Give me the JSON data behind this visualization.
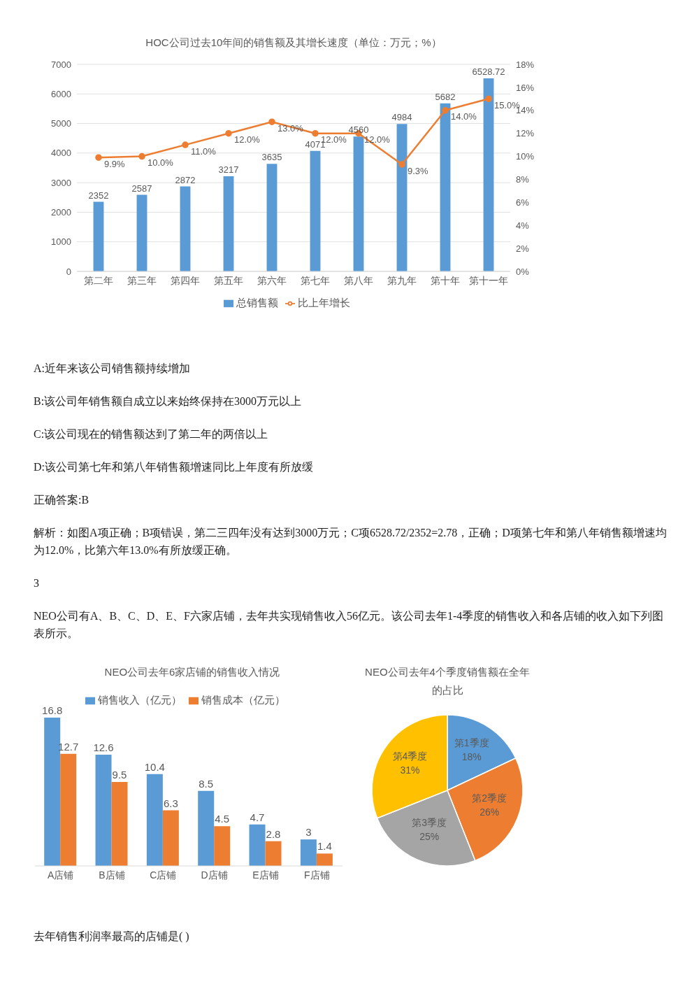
{
  "chart_data": [
    {
      "type": "bar",
      "title": "HOC公司过去10年间的销售额及其增长速度（单位：万元；%）",
      "categories": [
        "第二年",
        "第三年",
        "第四年",
        "第五年",
        "第六年",
        "第七年",
        "第八年",
        "第九年",
        "第十年",
        "第十一年"
      ],
      "series": [
        {
          "name": "总销售额",
          "type": "bar",
          "color": "#5b9bd5",
          "values": [
            2352,
            2587,
            2872,
            3217,
            3635,
            4071,
            4560,
            4984,
            5682,
            6528.72
          ],
          "value_labels": [
            "2352",
            "2587",
            "2872",
            "3217",
            "3635",
            "4071",
            "4560",
            "4984",
            "5682",
            "6528.72"
          ]
        },
        {
          "name": "比上年增长",
          "type": "line",
          "axis": "y2",
          "color": "#ed7d31",
          "values": [
            9.9,
            10.0,
            11.0,
            12.0,
            13.0,
            12.0,
            12.0,
            9.3,
            14.0,
            15.0
          ],
          "value_labels": [
            "9.9%",
            "10.0%",
            "11.0%",
            "12.0%",
            "13.0%",
            "12.0%",
            "12.0%",
            "9.3%",
            "14.0%",
            "15.0%"
          ]
        }
      ],
      "ylim": [
        0,
        7000
      ],
      "yticks": [
        0,
        1000,
        2000,
        3000,
        4000,
        5000,
        6000,
        7000
      ],
      "y2lim": [
        0,
        18
      ],
      "y2ticks": [
        {
          "value": 0,
          "label": "0%"
        },
        {
          "value": 2,
          "label": "2%"
        },
        {
          "value": 4,
          "label": "4%"
        },
        {
          "value": 6,
          "label": "6%"
        },
        {
          "value": 8,
          "label": "8%"
        },
        {
          "value": 10,
          "label": "10%"
        },
        {
          "value": 12,
          "label": "12%"
        },
        {
          "value": 14,
          "label": "14%"
        },
        {
          "value": 16,
          "label": "16%"
        },
        {
          "value": 18,
          "label": "18%"
        }
      ],
      "grid": "y",
      "legend": "bottom",
      "marker": "circle",
      "line_style": "solid",
      "annotations": [
        "A:近年来该公司销售额持续增加",
        "B:该公司年销售额自成立以来始终保持在3000万元以上",
        "C:该公司现在的销售额达到了第二年的两倍以上",
        "D:该公司第七年和第八年销售额增速同比上年度有所放缓",
        "正确答案:B",
        "解析：如图A项正确；B项错误，第二三四年没有达到3000万元；C项6528.72/2352=2.78，正确；D项第七年和第八年销售额增速均为12.0%，比第六年13.0%有所放缓正确。",
        "3",
        "NEO公司有A、B、C、D、E、F六家店铺，去年共实现销售收入56亿元。该公司去年1-4季度的销售收入和各店铺的收入如下列图表所示。"
      ]
    },
    {
      "type": "bar",
      "title": "NEO公司去年6家店铺的销售收入情况",
      "categories": [
        "A店铺",
        "B店铺",
        "C店铺",
        "D店铺",
        "E店铺",
        "F店铺"
      ],
      "series": [
        {
          "name": "销售收入（亿元）",
          "color": "#5b9bd5",
          "values": [
            16.8,
            12.6,
            10.4,
            8.5,
            4.7,
            3
          ]
        },
        {
          "name": "销售成本（亿元）",
          "color": "#ed7d31",
          "values": [
            12.7,
            9.5,
            6.3,
            4.5,
            2.8,
            1.4
          ]
        }
      ],
      "data_labels": true,
      "tick_labels": "x",
      "legend": "top"
    },
    {
      "type": "pie",
      "title": "NEO公司去年4个季度销售额在全年的占比",
      "categories": [
        "第1季度",
        "第2季度",
        "第3季度",
        "第4季度"
      ],
      "values": [
        18,
        26,
        25,
        31
      ],
      "value_labels": [
        "18%",
        "26%",
        "25%",
        "31%"
      ],
      "colors": [
        "#5b9bd5",
        "#ed7d31",
        "#a5a5a5",
        "#ffc000"
      ],
      "annotations": [
        "去年销售利润率最高的店铺是( )"
      ]
    }
  ]
}
